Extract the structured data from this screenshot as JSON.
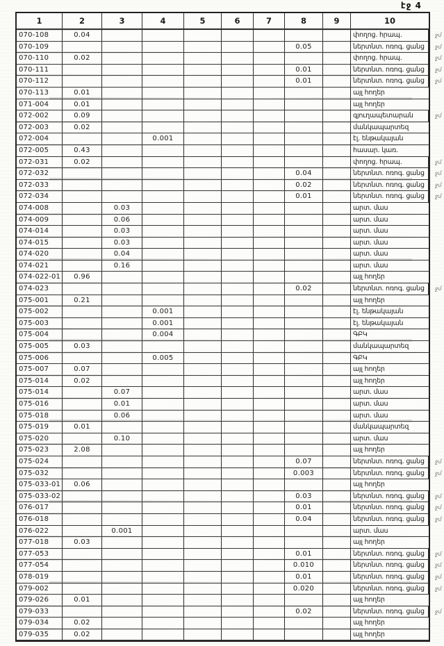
{
  "page": {
    "label": "էջ 4"
  },
  "table": {
    "columns": [
      "1",
      "2",
      "3",
      "4",
      "5",
      "6",
      "7",
      "8",
      "9",
      "10"
    ],
    "rows": [
      {
        "code": "070-108",
        "values": {
          "2": "0.04"
        },
        "usage": "փողոց. հրապ.",
        "note": "ջմ"
      },
      {
        "code": "070-109",
        "values": {
          "8": "0.05"
        },
        "usage": "ներտնտ. ոռոգ. ցանց",
        "note": "ջմ"
      },
      {
        "code": "070-110",
        "values": {
          "2": "0.02"
        },
        "usage": "փողոց. հրապ.",
        "note": "ջմ"
      },
      {
        "code": "070-111",
        "values": {
          "8": "0.01"
        },
        "usage": "ներտնտ. ոռոգ. ցանց",
        "note": "ջմ"
      },
      {
        "code": "070-112",
        "values": {
          "8": "0.01"
        },
        "usage": "ներտնտ. ոռոգ. ցանց",
        "note": "ջմ"
      },
      {
        "code": "070-113",
        "values": {
          "2": "0.01"
        },
        "usage": "այլ հողեր",
        "note": ""
      },
      {
        "code": "071-004",
        "values": {
          "2": "0.01"
        },
        "usage": "այլ հողեր",
        "note": ""
      },
      {
        "code": "072-002",
        "values": {
          "2": "0.09"
        },
        "usage": "գյուղապետարան",
        "note": "ջմ"
      },
      {
        "code": "072-003",
        "values": {
          "2": "0.02"
        },
        "usage": "մանկապարտեզ",
        "note": ""
      },
      {
        "code": "072-004",
        "values": {
          "4": "0.001"
        },
        "usage": "էլ. ենթակայան",
        "note": ""
      },
      {
        "code": "072-005",
        "values": {
          "2": "0.43"
        },
        "usage": "հասար. կառ.",
        "note": ""
      },
      {
        "code": "072-031",
        "values": {
          "2": "0.02"
        },
        "usage": "փողոց. հրապ.",
        "note": "ջմ"
      },
      {
        "code": "072-032",
        "values": {
          "8": "0.04"
        },
        "usage": "ներտնտ. ոռոգ. ցանց",
        "note": "ջմ"
      },
      {
        "code": "072-033",
        "values": {
          "8": "0.02"
        },
        "usage": "ներտնտ. ոռոգ. ցանց",
        "note": "ջմ"
      },
      {
        "code": "072-034",
        "values": {
          "8": "0.01"
        },
        "usage": "ներտնտ. ոռոգ. ցանց",
        "note": "ջմ"
      },
      {
        "code": "074-008",
        "values": {
          "3": "0.03"
        },
        "usage": "արտ. մաս",
        "note": ""
      },
      {
        "code": "074-009",
        "values": {
          "3": "0.06"
        },
        "usage": "արտ. մաս",
        "note": ""
      },
      {
        "code": "074-014",
        "values": {
          "3": "0.03"
        },
        "usage": "արտ. մաս",
        "note": ""
      },
      {
        "code": "074-015",
        "values": {
          "3": "0.03"
        },
        "usage": "արտ. մաս",
        "note": ""
      },
      {
        "code": "074-020",
        "values": {
          "3": "0.04"
        },
        "usage": "արտ. մաս",
        "note": ""
      },
      {
        "code": "074-021",
        "values": {
          "3": "0.16"
        },
        "usage": "արտ. մաս",
        "note": ""
      },
      {
        "code": "074-022-01",
        "values": {
          "2": "0.96"
        },
        "usage": "այլ հողեր",
        "note": ""
      },
      {
        "code": "074-023",
        "values": {
          "8": "0.02"
        },
        "usage": "ներտնտ. ոռոգ. ցանց",
        "note": "ջմ"
      },
      {
        "code": "075-001",
        "values": {
          "2": "0.21"
        },
        "usage": "այլ հողեր",
        "note": ""
      },
      {
        "code": "075-002",
        "values": {
          "4": "0.001"
        },
        "usage": "էլ. ենթակայան",
        "note": ""
      },
      {
        "code": "075-003",
        "values": {
          "4": "0.001"
        },
        "usage": "էլ. ենթակայան",
        "note": ""
      },
      {
        "code": "075-004",
        "values": {
          "4": "0.004"
        },
        "usage": "ԳԲԿ",
        "note": ""
      },
      {
        "code": "075-005",
        "values": {
          "2": "0.03"
        },
        "usage": "մանկապարտեզ",
        "note": ""
      },
      {
        "code": "075-006",
        "values": {
          "4": "0.005"
        },
        "usage": "ԳԲԿ",
        "note": ""
      },
      {
        "code": "075-007",
        "values": {
          "2": "0.07"
        },
        "usage": "այլ հողեր",
        "note": ""
      },
      {
        "code": "075-014",
        "values": {
          "2": "0.02"
        },
        "usage": "այլ հողեր",
        "note": ""
      },
      {
        "code": "075-014",
        "values": {
          "3": "0.07"
        },
        "usage": "արտ. մաս",
        "note": ""
      },
      {
        "code": "075-016",
        "values": {
          "3": "0.01"
        },
        "usage": "արտ. մաս",
        "note": ""
      },
      {
        "code": "075-018",
        "values": {
          "3": "0.06"
        },
        "usage": "արտ. մաս",
        "note": ""
      },
      {
        "code": "075-019",
        "values": {
          "2": "0.01"
        },
        "usage": "մանկապարտեզ",
        "note": ""
      },
      {
        "code": "075-020",
        "values": {
          "3": "0.10"
        },
        "usage": "արտ. մաս",
        "note": ""
      },
      {
        "code": "075-023",
        "values": {
          "2": "2.08"
        },
        "usage": "այլ հողեր",
        "note": ""
      },
      {
        "code": "075-024",
        "values": {
          "8": "0.07"
        },
        "usage": "ներտնտ. ոռոգ. ցանց",
        "note": "ջմ"
      },
      {
        "code": "075-032",
        "values": {
          "8": "0.003"
        },
        "usage": "ներտնտ. ոռոգ. ցանց",
        "note": "ջմ"
      },
      {
        "code": "075-033-01",
        "values": {
          "2": "0.06"
        },
        "usage": "այլ հողեր",
        "note": ""
      },
      {
        "code": "075-033-02",
        "values": {
          "8": "0.03"
        },
        "usage": "ներտնտ. ոռոգ. ցանց",
        "note": "ջմ"
      },
      {
        "code": "076-017",
        "values": {
          "8": "0.01"
        },
        "usage": "ներտնտ. ոռոգ. ցանց",
        "note": "ջմ"
      },
      {
        "code": "076-018",
        "values": {
          "8": "0.04"
        },
        "usage": "ներտնտ. ոռոգ. ցանց",
        "note": "ջմ"
      },
      {
        "code": "076-022",
        "values": {
          "3": "0.001"
        },
        "usage": "արտ. մաս",
        "note": ""
      },
      {
        "code": "077-018",
        "values": {
          "2": "0.03"
        },
        "usage": "այլ հողեր",
        "note": ""
      },
      {
        "code": "077-053",
        "values": {
          "8": "0.01"
        },
        "usage": "ներտնտ. ոռոգ. ցանց",
        "note": "ջմ"
      },
      {
        "code": "077-054",
        "values": {
          "8": "0.010"
        },
        "usage": "ներտնտ. ոռոգ. ցանց",
        "note": "ջմ"
      },
      {
        "code": "078-019",
        "values": {
          "8": "0.01"
        },
        "usage": "ներտնտ. ոռոգ. ցանց",
        "note": "ջմ"
      },
      {
        "code": "079-002",
        "values": {
          "8": "0.020"
        },
        "usage": "ներտնտ. ոռոգ. ցանց",
        "note": "ջմ"
      },
      {
        "code": "079-026",
        "values": {
          "2": "0.01"
        },
        "usage": "այլ հողեր",
        "note": ""
      },
      {
        "code": "079-033",
        "values": {
          "8": "0.02"
        },
        "usage": "ներտնտ. ոռոգ. ցանց",
        "note": "ջմ"
      },
      {
        "code": "079-034",
        "values": {
          "2": "0.02"
        },
        "usage": "այլ հողեր",
        "note": ""
      },
      {
        "code": "079-035",
        "values": {
          "2": "0.02"
        },
        "usage": "այլ հողեր",
        "note": ""
      }
    ]
  }
}
